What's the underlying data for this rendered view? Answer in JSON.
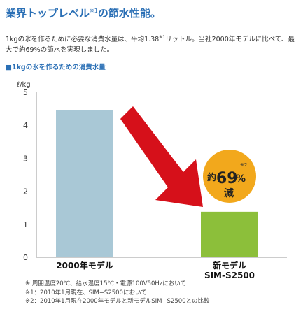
{
  "header": {
    "title": "業界トップレベル",
    "title_sup": "※1",
    "title_suffix": "の節水性能。"
  },
  "intro": {
    "text_a": "1kgの氷を作るために必要な消費水量は、平均1.38",
    "sup": "※1",
    "text_b": "リットル。当社2000年モデルに比べて、最大で約69%の節水を実現しました。"
  },
  "subheading": {
    "mark": "■",
    "text": "1kgの氷を作るための消費水量"
  },
  "badge": {
    "prefix": "約",
    "value": "69",
    "unit": "%",
    "note": "※2",
    "suffix": "減"
  },
  "colors": {
    "bar_old": "#a9c8d6",
    "bar_new": "#8cbf3a",
    "arrow": "#d6101a",
    "badge": "#f2a81c"
  },
  "chart_data": {
    "type": "bar",
    "ylabel": "ℓ/kg",
    "ylim": [
      0,
      5
    ],
    "yticks": [
      0,
      1,
      2,
      3,
      4,
      5
    ],
    "bars": [
      {
        "label": "2000年モデル",
        "value": 4.45
      },
      {
        "label": "新モデル",
        "label2": "SIM-S2500",
        "value": 1.38
      }
    ]
  },
  "notes": [
    "※ 周囲温度20℃、給水温度15℃・電源100V50Hzにおいて",
    "※1：2010年1月現在、SIM−S2500において",
    "※2：2010年1月現在2000年モデルと新モデルSIM−S2500との比較"
  ]
}
